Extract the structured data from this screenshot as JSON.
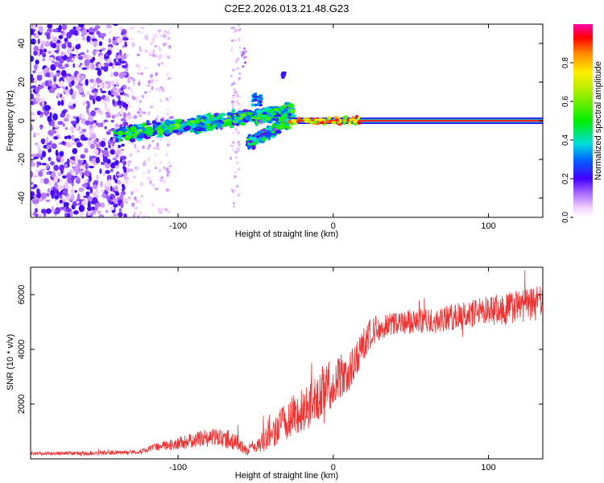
{
  "chart_data": [
    {
      "type": "heatmap",
      "title": "C2E2.2026.013.21.48.G23",
      "xlabel": "Height of straight line (km)",
      "ylabel": "Frequency (Hz)",
      "xlim": [
        -195,
        135
      ],
      "ylim": [
        -50,
        50
      ],
      "x_ticks": [
        {
          "value": -100,
          "label": "-100"
        },
        {
          "value": 0,
          "label": "0"
        },
        {
          "value": 100,
          "label": "100"
        }
      ],
      "y_ticks": [
        {
          "value": 40,
          "label": "40"
        },
        {
          "value": 20,
          "label": "20"
        },
        {
          "value": 0,
          "label": "0"
        },
        {
          "value": -20,
          "label": "-20"
        },
        {
          "value": -40,
          "label": "-40"
        }
      ],
      "colorbar": {
        "label": "Normalized spectral amplitude",
        "range": [
          0,
          1
        ],
        "ticks": [
          {
            "value": 0.0,
            "label": "0.0"
          },
          {
            "value": 0.2,
            "label": "0.2"
          },
          {
            "value": 0.4,
            "label": "0.4"
          },
          {
            "value": 0.6,
            "label": "0.6"
          },
          {
            "value": 0.8,
            "label": "0.8"
          }
        ]
      },
      "regions": [
        {
          "name": "noise",
          "x_range": [
            -195,
            -133
          ],
          "amplitude": 0.1
        },
        {
          "name": "sparse-noise",
          "x_range": [
            -133,
            -105
          ],
          "amplitude": 0.05
        },
        {
          "name": "ridge",
          "x_range": [
            -140,
            -25
          ],
          "freq_start": -7,
          "freq_end": 5,
          "amplitude": 0.4
        },
        {
          "name": "branch",
          "x_range": [
            -55,
            -28
          ],
          "freq_start": -12,
          "freq_end": 0,
          "amplitude": 0.45
        },
        {
          "name": "peak",
          "x_range": [
            -28,
            135
          ],
          "freq": 0,
          "amplitude": 0.95
        }
      ]
    },
    {
      "type": "line",
      "xlabel": "Height of straight line (km)",
      "ylabel": "SNR (10 * v/v)",
      "xlim": [
        -195,
        135
      ],
      "ylim": [
        0,
        7000
      ],
      "x_ticks": [
        {
          "value": -100,
          "label": "-100"
        },
        {
          "value": 0,
          "label": "0"
        },
        {
          "value": 100,
          "label": "100"
        }
      ],
      "y_ticks": [
        {
          "value": 2000,
          "label": "2000"
        },
        {
          "value": 4000,
          "label": "4000"
        },
        {
          "value": 6000,
          "label": "6000"
        }
      ],
      "series": [
        {
          "name": "SNR",
          "color": "#ee3333",
          "points": [
            [
              -195,
              200
            ],
            [
              -160,
              200
            ],
            [
              -125,
              250
            ],
            [
              -115,
              420
            ],
            [
              -100,
              550
            ],
            [
              -80,
              800
            ],
            [
              -65,
              700
            ],
            [
              -55,
              300
            ],
            [
              -45,
              650
            ],
            [
              -30,
              1400
            ],
            [
              -15,
              2000
            ],
            [
              -5,
              2600
            ],
            [
              5,
              3000
            ],
            [
              10,
              3100
            ],
            [
              15,
              3600
            ],
            [
              20,
              4200
            ],
            [
              25,
              4700
            ],
            [
              35,
              4900
            ],
            [
              50,
              5000
            ],
            [
              70,
              5100
            ],
            [
              90,
              5300
            ],
            [
              110,
              5500
            ],
            [
              135,
              5700
            ]
          ],
          "noise": [
            [
              -195,
              60
            ],
            [
              -125,
              80
            ],
            [
              -100,
              250
            ],
            [
              -65,
              350
            ],
            [
              -55,
              200
            ],
            [
              -45,
              400
            ],
            [
              -30,
              700
            ],
            [
              -15,
              900
            ],
            [
              0,
              900
            ],
            [
              15,
              700
            ],
            [
              35,
              400
            ],
            [
              80,
              500
            ],
            [
              135,
              650
            ]
          ]
        }
      ]
    }
  ]
}
